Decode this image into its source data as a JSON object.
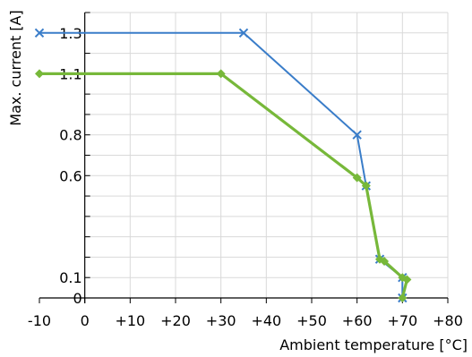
{
  "chart_data": {
    "type": "line",
    "xlabel": "Ambient temperature [°C]",
    "ylabel": "Max. current [A]",
    "xlim": [
      -10,
      80
    ],
    "ylim": [
      0,
      1.4
    ],
    "x_ticks": [
      -10,
      0,
      10,
      20,
      30,
      40,
      50,
      60,
      70,
      80
    ],
    "x_tick_labels": [
      "-10",
      "0",
      "+10",
      "+20",
      "+30",
      "+40",
      "+50",
      "+60",
      "+70",
      "+80"
    ],
    "y_ticks": [
      0,
      0.1,
      0.2,
      0.3,
      0.4,
      0.5,
      0.6,
      0.7,
      0.8,
      0.9,
      1.0,
      1.1,
      1.2,
      1.3,
      1.4
    ],
    "y_labeled_ticks": [
      0,
      0.1,
      0.6,
      0.8,
      1.1,
      1.3
    ],
    "y_tick_labels": [
      "0",
      "0.1",
      "0.6",
      "0.8",
      "1.1",
      "1.3"
    ],
    "grid": true,
    "series": [
      {
        "color": "#3a7dc9",
        "marker": "x",
        "points": [
          {
            "x": -10,
            "y": 1.3
          },
          {
            "x": 35,
            "y": 1.3
          },
          {
            "x": 60,
            "y": 0.8
          },
          {
            "x": 62,
            "y": 0.55
          },
          {
            "x": 65,
            "y": 0.19
          },
          {
            "x": 70,
            "y": 0.1
          },
          {
            "x": 70,
            "y": 0
          }
        ]
      },
      {
        "color": "#77b83a",
        "marker": "diamond",
        "points": [
          {
            "x": -10,
            "y": 1.1
          },
          {
            "x": 30,
            "y": 1.1
          },
          {
            "x": 60,
            "y": 0.59
          },
          {
            "x": 62,
            "y": 0.55
          },
          {
            "x": 65,
            "y": 0.19
          },
          {
            "x": 66,
            "y": 0.18
          },
          {
            "x": 70,
            "y": 0.1
          },
          {
            "x": 71,
            "y": 0.09
          },
          {
            "x": 70,
            "y": 0
          }
        ]
      }
    ]
  }
}
